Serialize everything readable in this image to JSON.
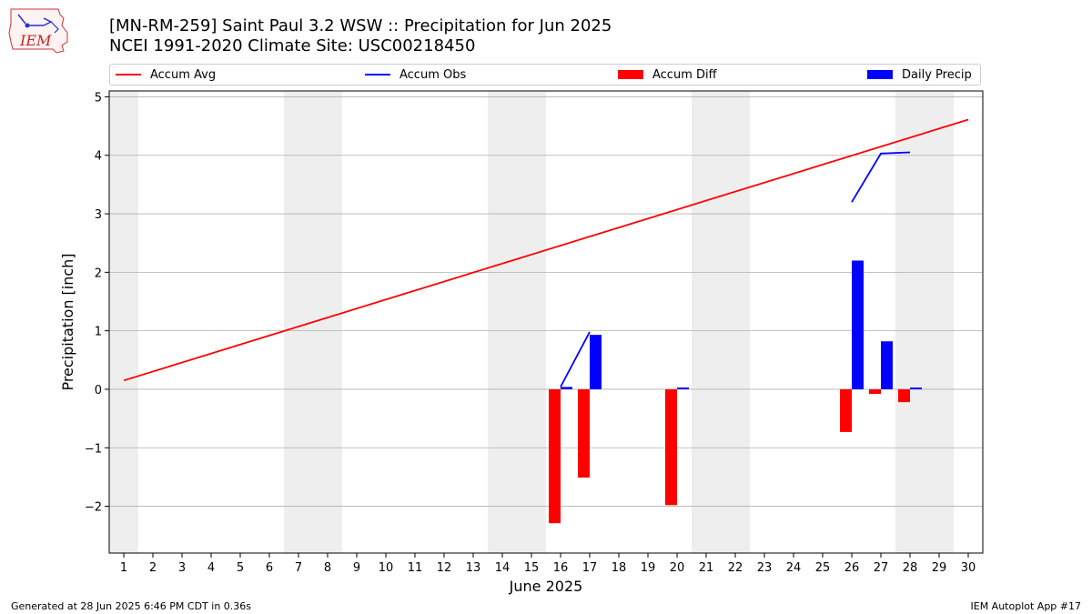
{
  "header": {
    "title_line1": "[MN-RM-259] Saint Paul 3.2 WSW :: Precipitation for Jun 2025",
    "title_line2": "NCEI 1991-2020 Climate Site: USC00218450",
    "logo_text": "IEM"
  },
  "footer": {
    "generated": "Generated at 28 Jun 2025 6:46 PM CDT in 0.36s",
    "app": "IEM Autoplot App #17"
  },
  "colors": {
    "accum_avg": "#ff0000",
    "accum_obs": "#0000ff",
    "accum_diff": "#ff0000",
    "daily_precip": "#0000ff",
    "weekend_shade": "#eeeeee",
    "grid": "#b0b0b0"
  },
  "chart_data": {
    "type": "bar",
    "xlabel": "June 2025",
    "ylabel": "Precipitation [inch]",
    "ylim": [
      -2.8,
      5.1
    ],
    "yticks": [
      -2,
      -1,
      0,
      1,
      2,
      3,
      4,
      5
    ],
    "ytick_labels": [
      "−2",
      "−1",
      "0",
      "1",
      "2",
      "3",
      "4",
      "5"
    ],
    "xlim": [
      0.5,
      30.5
    ],
    "days": [
      1,
      2,
      3,
      4,
      5,
      6,
      7,
      8,
      9,
      10,
      11,
      12,
      13,
      14,
      15,
      16,
      17,
      18,
      19,
      20,
      21,
      22,
      23,
      24,
      25,
      26,
      27,
      28,
      29,
      30
    ],
    "grid": "horizontal",
    "legend": {
      "placement": "top",
      "entries": [
        "Accum Avg",
        "Accum Obs",
        "Accum Diff",
        "Daily Precip"
      ]
    },
    "weekend_spans": [
      [
        0.5,
        1.5
      ],
      [
        6.5,
        8.5
      ],
      [
        13.5,
        15.5
      ],
      [
        20.5,
        22.5
      ],
      [
        27.5,
        29.5
      ]
    ],
    "series": [
      {
        "name": "Accum Avg",
        "kind": "line",
        "x": [
          1,
          30
        ],
        "values": [
          0.15,
          4.61
        ]
      },
      {
        "name": "Accum Obs",
        "kind": "line",
        "segments": [
          {
            "x": [
              16,
              17
            ],
            "values": [
              0.04,
              0.98
            ]
          },
          {
            "x": [
              26,
              27,
              28
            ],
            "values": [
              3.2,
              4.03,
              4.05
            ]
          }
        ]
      },
      {
        "name": "Accum Diff",
        "kind": "bar",
        "x": [
          16,
          17,
          20,
          26,
          27,
          28
        ],
        "values": [
          -2.29,
          -1.51,
          -1.98,
          -0.73,
          -0.08,
          -0.22
        ]
      },
      {
        "name": "Daily Precip",
        "kind": "bar",
        "x": [
          16,
          17,
          20,
          26,
          27,
          28
        ],
        "values": [
          0.04,
          0.93,
          0.03,
          2.2,
          0.82,
          0.03
        ]
      }
    ]
  }
}
